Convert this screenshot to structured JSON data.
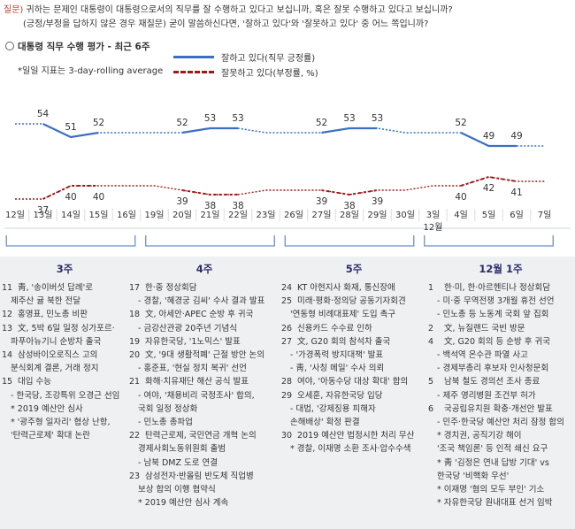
{
  "question": {
    "label": "질문)",
    "line1": "귀하는 문제인 대통령이 대통령으로서의 직무를 잘 수행하고 있다고 보십니까, 혹은 잘못 수행하고 있다고 보십니까?",
    "line2": "(긍정/부정을 답하지 않은 경우 재질문) 굳이 말씀하신다면, '잘하고 있다'와 '잘못하고 있다' 중 어느 쪽입니까?"
  },
  "section_title": "대통령 직무 수행 평가 - 최근 6주",
  "note": "*일일 지표는 3-day-rolling average",
  "chart_data": {
    "type": "line",
    "categories": [
      "12일",
      "13일",
      "14일",
      "15일",
      "16일",
      "19일",
      "20일",
      "21일",
      "22일",
      "23일",
      "26일",
      "27일",
      "28일",
      "29일",
      "30일",
      "3일",
      "4일",
      "5일",
      "6일",
      "7일"
    ],
    "month_label": "12월",
    "series": [
      {
        "name": "잘하고 있다(직무 긍정률)",
        "color": "#3b6fc4",
        "values": [
          54,
          54,
          51,
          52,
          52,
          52,
          52,
          53,
          53,
          52,
          52,
          52,
          53,
          53,
          52,
          52,
          52,
          49,
          49,
          49
        ],
        "labels": [
          "",
          "54",
          "51",
          "52",
          "",
          "",
          "52",
          "53",
          "53",
          "",
          "",
          "52",
          "53",
          "53",
          "",
          "",
          "52",
          "49",
          "49",
          ""
        ],
        "style": "solid"
      },
      {
        "name": "잘못하고 있다(부정률, %)",
        "color": "#a01818",
        "values": [
          37,
          37,
          40,
          40,
          40,
          40,
          39,
          38,
          38,
          39,
          39,
          39,
          38,
          39,
          39,
          40,
          40,
          42,
          41,
          41
        ],
        "labels": [
          "",
          "37",
          "40",
          "40",
          "",
          "",
          "39",
          "38",
          "38",
          "",
          "",
          "39",
          "38",
          "39",
          "",
          "",
          "40",
          "42",
          "41",
          ""
        ],
        "style": "dashed"
      }
    ],
    "ylim": [
      30,
      60
    ],
    "grid": false,
    "legend": "top"
  },
  "weeks": [
    {
      "title": "3주",
      "events": [
        {
          "d": "11",
          "t": "靑, '송이버섯 답례'로",
          "sub": false
        },
        {
          "d": "",
          "t": "제주산 귤 북한 전달",
          "sub": true
        },
        {
          "d": "12",
          "t": "홍영표, 민노총 비판",
          "sub": false
        },
        {
          "d": "13",
          "t": "文, 5박 6일 일정 싱가포르·",
          "sub": false
        },
        {
          "d": "",
          "t": "파푸아뉴기니 순방차 출국",
          "sub": true
        },
        {
          "d": "14",
          "t": "삼성바이오로직스 고의",
          "sub": false
        },
        {
          "d": "",
          "t": "분식회계 결론, 거래 정지",
          "sub": true
        },
        {
          "d": "15",
          "t": "대입 수능",
          "sub": false
        },
        {
          "d": "",
          "t": "- 한국당, 조강특위 오경근 선임",
          "sub": true
        },
        {
          "d": "",
          "t": "* 2019 예산안 심사",
          "sub": true
        },
        {
          "d": "",
          "t": "* '광주형 일자리' 협상 난항,",
          "sub": true
        },
        {
          "d": "",
          "t": "'탄력근로제' 확대 논란",
          "sub": true
        }
      ]
    },
    {
      "title": "4주",
      "events": [
        {
          "d": "17",
          "t": "한·중 정상회담",
          "sub": false
        },
        {
          "d": "",
          "t": "- 경찰, '혜경궁 김씨' 수사 결과 발표",
          "sub": true
        },
        {
          "d": "18",
          "t": "文, 아세안·APEC 순방 후 귀국",
          "sub": false
        },
        {
          "d": "",
          "t": "- 금강산관광 20주년 기념식",
          "sub": true
        },
        {
          "d": "19",
          "t": "자유한국당, '1노믹스' 발표",
          "sub": false
        },
        {
          "d": "20",
          "t": "文, '9대 생활적폐' 근절 방안 논의",
          "sub": false
        },
        {
          "d": "",
          "t": "- 홍준표, '현실 정치 복귀' 선언",
          "sub": true
        },
        {
          "d": "21",
          "t": "화해·치유재단 해산 공식 발표",
          "sub": false
        },
        {
          "d": "",
          "t": "- 여야, '채용비리 국정조사' 합의,",
          "sub": true
        },
        {
          "d": "",
          "t": "국회 일정 정상화",
          "sub": true
        },
        {
          "d": "",
          "t": "- 민노총 총파업",
          "sub": true
        },
        {
          "d": "22",
          "t": "탄력근로제, 국민연금 개혁 논의",
          "sub": false
        },
        {
          "d": "",
          "t": "경제사회노동위원회 출범",
          "sub": true
        },
        {
          "d": "",
          "t": "- 남북 DMZ 도로 연결",
          "sub": true
        },
        {
          "d": "23",
          "t": "삼성전자·반올림 반도체 직업병",
          "sub": false
        },
        {
          "d": "",
          "t": "보상 합의 이행 협약식",
          "sub": true
        },
        {
          "d": "",
          "t": "* 2019 예산안 심사 계속",
          "sub": true
        }
      ]
    },
    {
      "title": "5주",
      "events": [
        {
          "d": "24",
          "t": "KT 아현지사 화재, 통신장애",
          "sub": false
        },
        {
          "d": "25",
          "t": "미래·평화·정의당 공동기자회견",
          "sub": false
        },
        {
          "d": "",
          "t": "'연동형 비례대표제' 도입 촉구",
          "sub": true
        },
        {
          "d": "26",
          "t": "신용카드 수수료 인하",
          "sub": false
        },
        {
          "d": "27",
          "t": "文, G20 회의 참석차 출국",
          "sub": false
        },
        {
          "d": "",
          "t": "- '가경폭력 방지대책' 발표",
          "sub": true
        },
        {
          "d": "",
          "t": "- 靑, '사칭 메일' 수사 의뢰",
          "sub": true
        },
        {
          "d": "28",
          "t": "여야, '아동수당 대상 확대' 합의",
          "sub": false
        },
        {
          "d": "29",
          "t": "오세훈, 자유한국당 입당",
          "sub": false
        },
        {
          "d": "",
          "t": "- 대법, '강제징용 피해자",
          "sub": true
        },
        {
          "d": "",
          "t": "손해배상' 확정 판결",
          "sub": true
        },
        {
          "d": "30",
          "t": "2019 예산안 법정시한 처리 무산",
          "sub": false
        },
        {
          "d": "",
          "t": "* 경찰, 이재명 소환 조사·압수수색",
          "sub": true
        }
      ]
    },
    {
      "title": "12월 1주",
      "events": [
        {
          "d": "1",
          "t": "한·미, 한·아르헨티나 정상회담",
          "sub": false
        },
        {
          "d": "",
          "t": "- 미·중 무역전쟁 3개월 휴전 선언",
          "sub": true
        },
        {
          "d": "",
          "t": "- 민노총 등 노동계 국회 앞 집회",
          "sub": true
        },
        {
          "d": "2",
          "t": "文, 뉴질랜드 국빈 방문",
          "sub": false
        },
        {
          "d": "4",
          "t": "文, G20 회의 등 순방 후 귀국",
          "sub": false
        },
        {
          "d": "",
          "t": "- 백석역 온수관 파열 사고",
          "sub": true
        },
        {
          "d": "",
          "t": "- 경제부총리 후보자 인사청문회",
          "sub": true
        },
        {
          "d": "5",
          "t": "남북 철도 경의선 조사 종료",
          "sub": false
        },
        {
          "d": "",
          "t": "- 제주 영리병원 조건부 허가",
          "sub": true
        },
        {
          "d": "6",
          "t": "국공립유치원 확충·개선안 발표",
          "sub": false
        },
        {
          "d": "",
          "t": "- 민주·한국당 예산안 처리 잠정 합의",
          "sub": true
        },
        {
          "d": "",
          "t": "* 경치권, 공직기강 해이",
          "sub": true
        },
        {
          "d": "",
          "t": "'조국 책임론' 등 인적 쇄신 요구",
          "sub": true
        },
        {
          "d": "",
          "t": "* 靑 '김정은 연내 답방 기대' vs",
          "sub": true
        },
        {
          "d": "",
          "t": "한국당 '비핵화 우선'",
          "sub": true
        },
        {
          "d": "",
          "t": "* 이재명 '혐의 모두 부인' 기소",
          "sub": true
        },
        {
          "d": "",
          "t": "* 자유한국당 원내대표 선거 임박",
          "sub": true
        }
      ]
    }
  ]
}
